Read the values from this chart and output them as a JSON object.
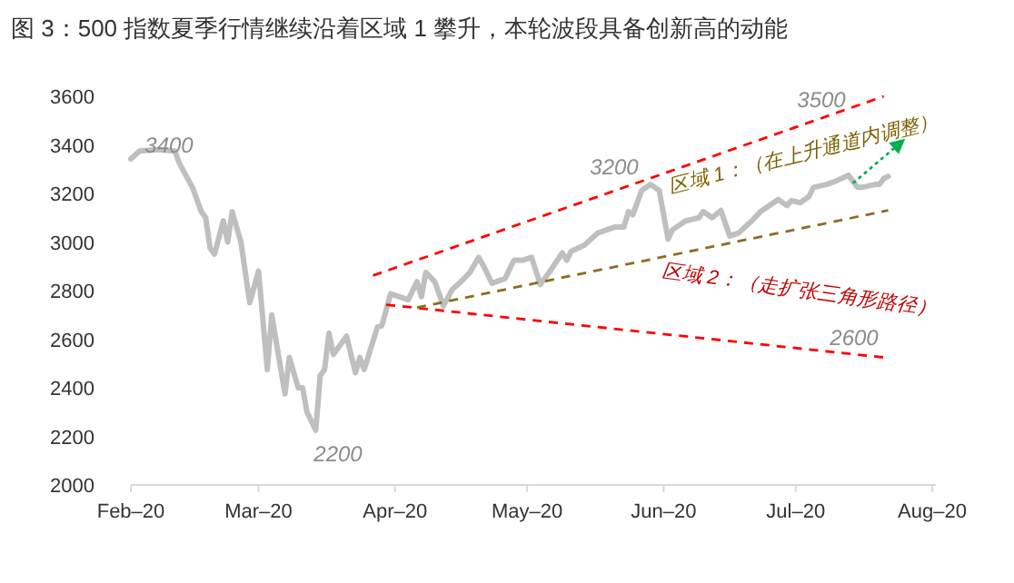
{
  "chart_data": {
    "type": "line",
    "title": "图 3：500 指数夏季行情继续沿着区域 1 攀升，本轮波段具备创新高的动能",
    "xlim": [
      "2020-02-01",
      "2020-08-01"
    ],
    "xticks": [
      {
        "value": "2020-02-01",
        "label": "Feb–20"
      },
      {
        "value": "2020-03-01",
        "label": "Mar–20"
      },
      {
        "value": "2020-04-01",
        "label": "Apr–20"
      },
      {
        "value": "2020-05-01",
        "label": "May–20"
      },
      {
        "value": "2020-06-01",
        "label": "Jun–20"
      },
      {
        "value": "2020-07-01",
        "label": "Jul–20"
      },
      {
        "value": "2020-08-01",
        "label": "Aug–20"
      }
    ],
    "ylim": [
      2000,
      3600
    ],
    "yticks": [
      2000,
      2200,
      2400,
      2600,
      2800,
      3000,
      3200,
      3400,
      3600
    ],
    "grid": false,
    "series": [
      {
        "color": "#bfbfbf",
        "line_style": "solid",
        "x": [
          "2020-02-01",
          "2020-02-03",
          "2020-02-07",
          "2020-02-11",
          "2020-02-12",
          "2020-02-15",
          "2020-02-17",
          "2020-02-18",
          "2020-02-19",
          "2020-02-20",
          "2020-02-22",
          "2020-02-23",
          "2020-02-24",
          "2020-02-26",
          "2020-02-28",
          "2020-03-01",
          "2020-03-03",
          "2020-03-04",
          "2020-03-07",
          "2020-03-08",
          "2020-03-10",
          "2020-03-11",
          "2020-03-12",
          "2020-03-14",
          "2020-03-15",
          "2020-03-16",
          "2020-03-17",
          "2020-03-18",
          "2020-03-21",
          "2020-03-23",
          "2020-03-24",
          "2020-03-25",
          "2020-03-28",
          "2020-03-29",
          "2020-03-31",
          "2020-04-04",
          "2020-04-06",
          "2020-04-07",
          "2020-04-08",
          "2020-04-10",
          "2020-04-12",
          "2020-04-14",
          "2020-04-16",
          "2020-04-18",
          "2020-04-20",
          "2020-04-21",
          "2020-04-23",
          "2020-04-26",
          "2020-04-28",
          "2020-04-30",
          "2020-05-02",
          "2020-05-04",
          "2020-05-06",
          "2020-05-09",
          "2020-05-10",
          "2020-05-11",
          "2020-05-14",
          "2020-05-17",
          "2020-05-21",
          "2020-05-23",
          "2020-05-24",
          "2020-05-25",
          "2020-05-27",
          "2020-05-29",
          "2020-05-31",
          "2020-06-02",
          "2020-06-03",
          "2020-06-06",
          "2020-06-09",
          "2020-06-10",
          "2020-06-12",
          "2020-06-14",
          "2020-06-16",
          "2020-06-18",
          "2020-06-21",
          "2020-06-23",
          "2020-06-27",
          "2020-06-29",
          "2020-06-30",
          "2020-07-02",
          "2020-07-04",
          "2020-07-05",
          "2020-07-08",
          "2020-07-10",
          "2020-07-13",
          "2020-07-15",
          "2020-07-16",
          "2020-07-19",
          "2020-07-20",
          "2020-07-21",
          "2020-07-22"
        ],
        "values": [
          3342,
          3375,
          3380,
          3375,
          3325,
          3225,
          3125,
          3100,
          2975,
          2950,
          3087,
          3000,
          3125,
          3000,
          2750,
          2880,
          2475,
          2700,
          2375,
          2525,
          2400,
          2400,
          2300,
          2225,
          2450,
          2475,
          2625,
          2537,
          2612,
          2462,
          2525,
          2475,
          2650,
          2655,
          2787,
          2762,
          2837,
          2775,
          2875,
          2837,
          2737,
          2805,
          2837,
          2875,
          2937,
          2905,
          2830,
          2850,
          2925,
          2925,
          2937,
          2825,
          2875,
          2955,
          2925,
          2962,
          2987,
          3037,
          3062,
          3062,
          3125,
          3112,
          3212,
          3237,
          3212,
          3012,
          3050,
          3087,
          3100,
          3125,
          3100,
          3130,
          3025,
          3037,
          3087,
          3125,
          3175,
          3150,
          3170,
          3162,
          3187,
          3225,
          3237,
          3250,
          3275,
          3225,
          3225,
          3237,
          3237,
          3262,
          3270
        ]
      },
      {
        "color": "#ff0000",
        "line_style": "dashed",
        "x": [
          "2020-03-27",
          "2020-07-21"
        ],
        "values": [
          2862,
          3600
        ]
      },
      {
        "color": "#ff0000",
        "line_style": "dashed",
        "x": [
          "2020-03-30",
          "2020-07-21"
        ],
        "values": [
          2742,
          2525
        ]
      },
      {
        "color": "#8c6d1f",
        "line_style": "dashed",
        "x": [
          "2020-04-06",
          "2020-07-22"
        ],
        "values": [
          2730,
          3130
        ]
      },
      {
        "color": "#00b050",
        "line_style": "dotted",
        "x": [
          "2020-07-14",
          "2020-07-25"
        ],
        "values": [
          3242,
          3412
        ]
      }
    ],
    "annotations": [
      "3400",
      "2200",
      "3200",
      "3500",
      "2600",
      "区域 1：（在上升通道内调整）",
      "区域 2：（走扩张三角形路径）"
    ]
  }
}
